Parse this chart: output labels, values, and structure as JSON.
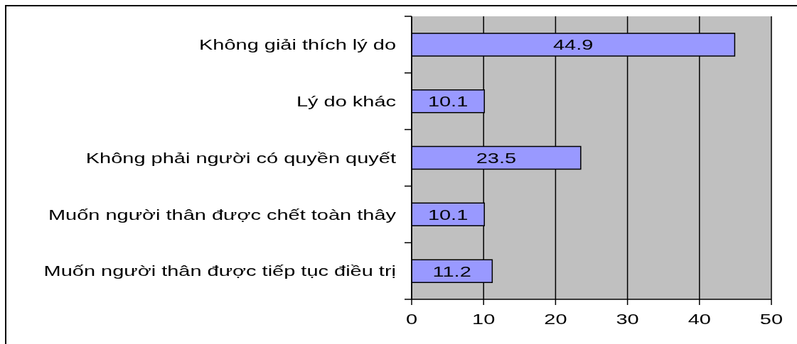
{
  "chart_data": {
    "type": "bar",
    "orientation": "horizontal",
    "categories": [
      "Không giải thích lý do",
      "Lý do khác",
      "Không phải người có quyền quyết",
      "Muốn người thân được chết toàn thây",
      "Muốn người thân được tiếp tục điều trị"
    ],
    "values": [
      44.9,
      10.1,
      23.5,
      10.1,
      11.2
    ],
    "color": "#9999ff",
    "xlim": [
      0,
      50
    ],
    "xticks": [
      0,
      10,
      20,
      30,
      40,
      50
    ],
    "grid": "x",
    "data_labels": true
  }
}
